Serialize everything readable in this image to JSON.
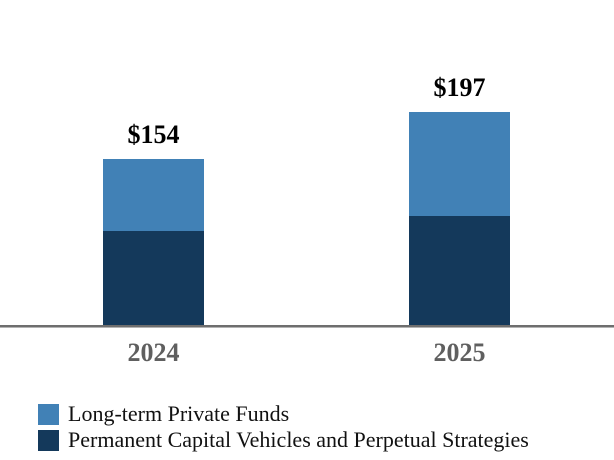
{
  "chart_data": {
    "type": "bar",
    "stacked": true,
    "title": "",
    "xlabel": "",
    "ylabel": "",
    "categories": [
      "2024",
      "2025"
    ],
    "series": [
      {
        "name": "Long-term Private Funds",
        "color": "#4181b6",
        "stack_position": "top",
        "values": [
          66,
          95
        ]
      },
      {
        "name": "Permanent Capital Vehicles and Perpetual Strategies",
        "color": "#14395b",
        "stack_position": "bottom",
        "values": [
          88,
          102
        ]
      }
    ],
    "totals": [
      154,
      197
    ],
    "total_labels": [
      "$154",
      "$197"
    ],
    "ylim": [
      0,
      220
    ],
    "grid": false,
    "legend_position": "bottom-left",
    "axis_line_color": "#6e6e6e",
    "category_label_color": "#5f5f5f",
    "total_label_color": "#000000"
  },
  "legend": {
    "items": [
      {
        "label": "Long-term Private Funds",
        "color": "#4181b6"
      },
      {
        "label": "Permanent Capital Vehicles and Perpetual Strategies",
        "color": "#14395b"
      }
    ]
  }
}
